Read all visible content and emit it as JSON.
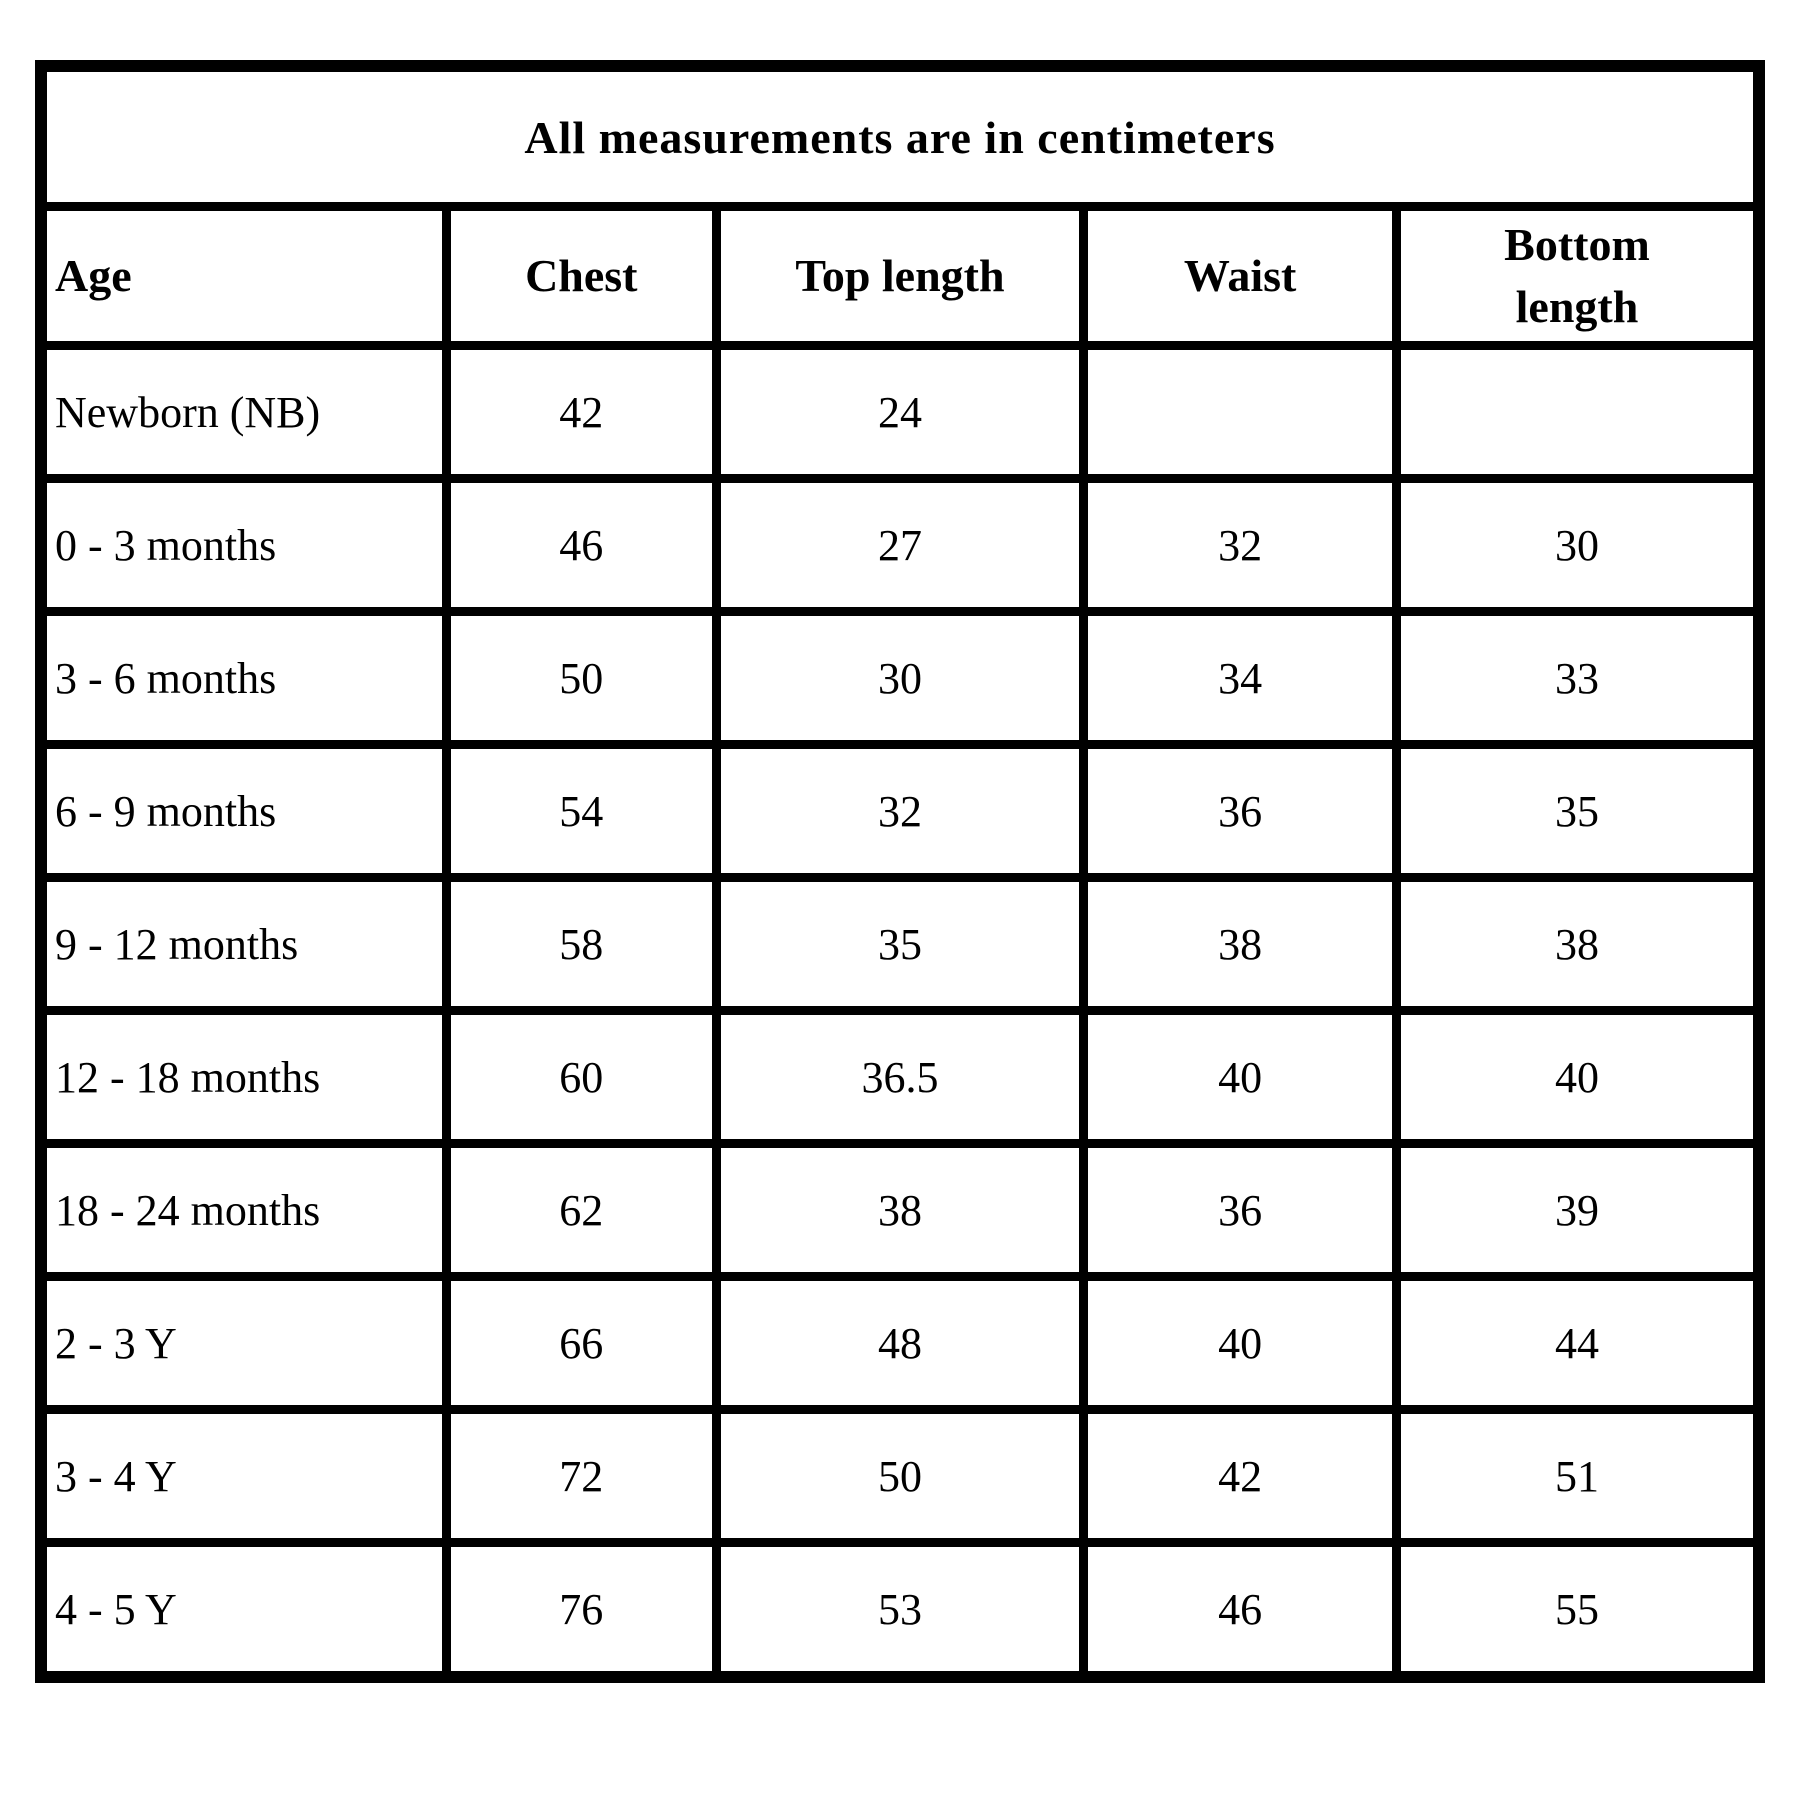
{
  "title": "All measurements are in centimeters",
  "table": {
    "columns": [
      "Age",
      "Chest",
      "Top length",
      "Waist",
      "Bottom length"
    ],
    "rows": [
      [
        "Newborn (NB)",
        "42",
        "24",
        "",
        ""
      ],
      [
        "0 - 3 months",
        "46",
        "27",
        "32",
        "30"
      ],
      [
        "3 - 6 months",
        "50",
        "30",
        "34",
        "33"
      ],
      [
        "6 - 9 months",
        "54",
        "32",
        "36",
        "35"
      ],
      [
        "9 - 12 months",
        "58",
        "35",
        "38",
        "38"
      ],
      [
        "12 - 18 months",
        "60",
        "36.5",
        "40",
        "40"
      ],
      [
        "18 - 24 months",
        "62",
        "38",
        "36",
        "39"
      ],
      [
        "2 - 3 Y",
        "66",
        "48",
        "40",
        "44"
      ],
      [
        "3 - 4 Y",
        "72",
        "50",
        "42",
        "51"
      ],
      [
        "4 - 5 Y",
        "76",
        "53",
        "46",
        "55"
      ]
    ]
  },
  "colors": {
    "border": "#000000",
    "background": "#ffffff",
    "text": "#000000"
  },
  "chart_data": {
    "type": "table",
    "title": "All measurements are in centimeters",
    "columns": [
      "Age",
      "Chest",
      "Top length",
      "Waist",
      "Bottom length"
    ],
    "rows": [
      [
        "Newborn (NB)",
        42,
        24,
        null,
        null
      ],
      [
        "0 - 3 months",
        46,
        27,
        32,
        30
      ],
      [
        "3 - 6 months",
        50,
        30,
        34,
        33
      ],
      [
        "6 - 9 months",
        54,
        32,
        36,
        35
      ],
      [
        "9 - 12 months",
        58,
        35,
        38,
        38
      ],
      [
        "12 - 18 months",
        60,
        36.5,
        40,
        40
      ],
      [
        "18 - 24 months",
        62,
        38,
        36,
        39
      ],
      [
        "2 - 3 Y",
        66,
        48,
        40,
        44
      ],
      [
        "3 - 4 Y",
        72,
        50,
        42,
        51
      ],
      [
        "4 - 5 Y",
        76,
        53,
        46,
        55
      ]
    ],
    "units": "centimeters"
  }
}
